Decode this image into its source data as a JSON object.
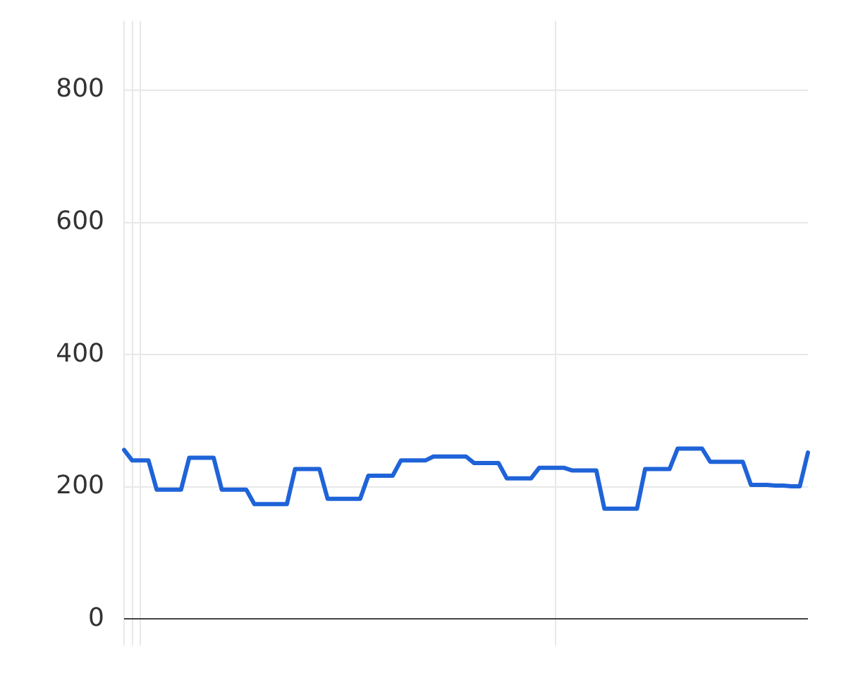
{
  "chart_data": {
    "type": "line",
    "categories": [
      null,
      null,
      null,
      null,
      null,
      null,
      null,
      null,
      null,
      null,
      null,
      null,
      null,
      null,
      null,
      null,
      null,
      null,
      null,
      null,
      null,
      null,
      null,
      null,
      null,
      null,
      null,
      null,
      null,
      null,
      null,
      null,
      null,
      null,
      null,
      null,
      null,
      null,
      null,
      null,
      null,
      null,
      null,
      null,
      null,
      null,
      null,
      null,
      null,
      null,
      null,
      null,
      null,
      null,
      null,
      null,
      null,
      null,
      null,
      null,
      null,
      null,
      null,
      null,
      null,
      null,
      null,
      null,
      null,
      null,
      null,
      null,
      null,
      null,
      null,
      null,
      null,
      null,
      null,
      null,
      null,
      null,
      null,
      null,
      null
    ],
    "series": [
      {
        "color": "#1f63d8",
        "values": [
          256,
          240,
          240,
          240,
          196,
          196,
          196,
          196,
          244,
          244,
          244,
          244,
          196,
          196,
          196,
          196,
          174,
          174,
          174,
          174,
          174,
          227,
          227,
          227,
          227,
          182,
          182,
          182,
          182,
          182,
          217,
          217,
          217,
          217,
          240,
          240,
          240,
          240,
          246,
          246,
          246,
          246,
          246,
          236,
          236,
          236,
          236,
          213,
          213,
          213,
          213,
          229,
          229,
          229,
          229,
          225,
          225,
          225,
          225,
          167,
          167,
          167,
          167,
          167,
          227,
          227,
          227,
          227,
          258,
          258,
          258,
          258,
          238,
          238,
          238,
          238,
          238,
          203,
          203,
          203,
          202,
          202,
          201,
          201,
          252
        ]
      }
    ],
    "ylim": [
      -40,
      905
    ],
    "yticks": [
      0,
      200,
      400,
      600,
      800
    ],
    "tick_labels": "y",
    "grid": true,
    "legend": false,
    "marker": "none",
    "line_style": "solid"
  }
}
